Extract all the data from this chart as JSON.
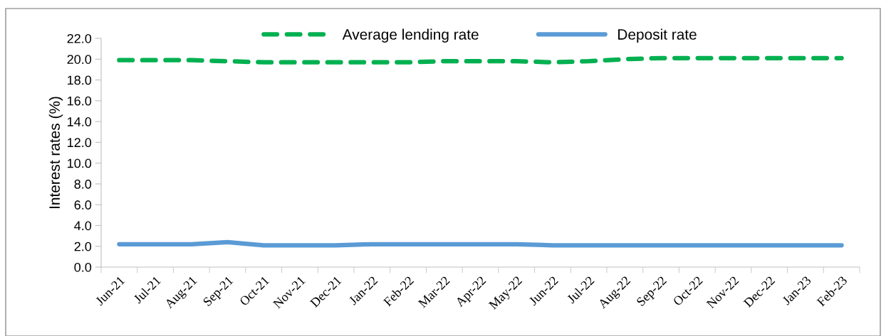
{
  "chart_data": {
    "type": "line",
    "ylabel": "Interest rates (%)",
    "categories": [
      "Jun-21",
      "Jul-21",
      "Aug-21",
      "Sep-21",
      "Oct-21",
      "Nov-21",
      "Dec-21",
      "Jan-22",
      "Feb-22",
      "Mar-22",
      "Apr-22",
      "May-22",
      "Jun-22",
      "Jul-22",
      "Aug-22",
      "Sep-22",
      "Oct-22",
      "Nov-22",
      "Dec-22",
      "Jan-23",
      "Feb-23"
    ],
    "series": [
      {
        "name": "Average lending rate",
        "color": "#00b050",
        "line_style": "dashed",
        "values": [
          19.9,
          19.9,
          19.9,
          19.8,
          19.7,
          19.7,
          19.7,
          19.7,
          19.7,
          19.8,
          19.8,
          19.8,
          19.7,
          19.8,
          20.0,
          20.1,
          20.1,
          20.1,
          20.1,
          20.1,
          20.1
        ]
      },
      {
        "name": "Deposit rate",
        "color": "#5b9bd5",
        "line_style": "solid",
        "values": [
          2.2,
          2.2,
          2.2,
          2.4,
          2.1,
          2.1,
          2.1,
          2.2,
          2.2,
          2.2,
          2.2,
          2.2,
          2.1,
          2.1,
          2.1,
          2.1,
          2.1,
          2.1,
          2.1,
          2.1,
          2.1
        ]
      }
    ],
    "ylim": [
      0,
      22
    ],
    "yticks": [
      {
        "value": 0,
        "label": "0.0"
      },
      {
        "value": 2,
        "label": "2.0"
      },
      {
        "value": 4,
        "label": "4.0"
      },
      {
        "value": 6,
        "label": "6.0"
      },
      {
        "value": 8,
        "label": "8.0"
      },
      {
        "value": 10,
        "label": "10.0"
      },
      {
        "value": 12,
        "label": "12.0"
      },
      {
        "value": 14,
        "label": "14.0"
      },
      {
        "value": 16,
        "label": "16.0"
      },
      {
        "value": 18,
        "label": "18.0"
      },
      {
        "value": 20,
        "label": "20.0"
      },
      {
        "value": 22,
        "label": "22.0"
      }
    ],
    "grid": false,
    "legend": "top",
    "marker": "none"
  }
}
